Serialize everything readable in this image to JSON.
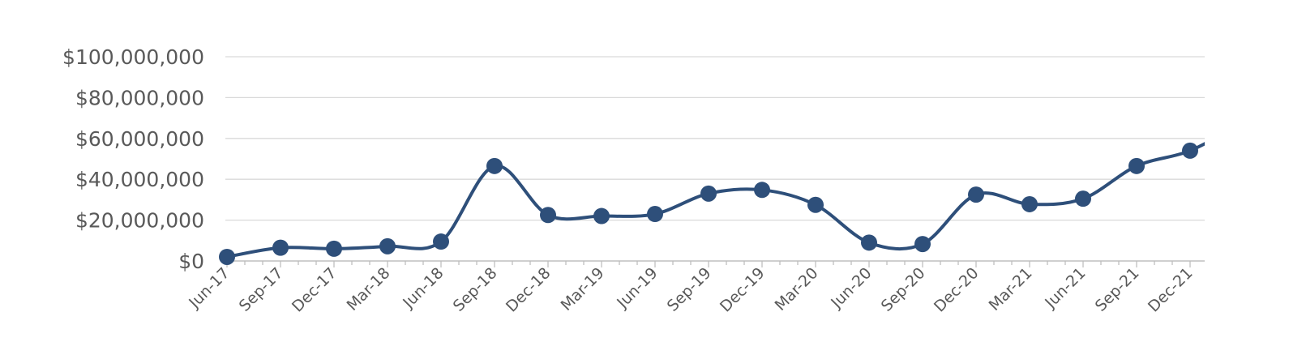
{
  "chart_data": {
    "type": "line",
    "categories": [
      "Jun-17",
      "Sep-17",
      "Dec-17",
      "Mar-18",
      "Jun-18",
      "Sep-18",
      "Dec-18",
      "Mar-19",
      "Jun-19",
      "Sep-19",
      "Dec-19",
      "Mar-20",
      "Jun-20",
      "Sep-20",
      "Dec-20",
      "Mar-21",
      "Jun-21",
      "Sep-21",
      "Dec-21"
    ],
    "series": [
      {
        "values": [
          2000000,
          6500000,
          6000000,
          7200000,
          9500000,
          46500000,
          22500000,
          22000000,
          23000000,
          33000000,
          34800000,
          27500000,
          9000000,
          8300000,
          32500000,
          27800000,
          30500000,
          46500000,
          54000000
        ],
        "color": "#2e4f7a"
      }
    ],
    "trailing_value": 68000000,
    "y_tick_labels": [
      "$0",
      "$20,000,000",
      "$40,000,000",
      "$60,000,000",
      "$80,000,000",
      "$100,000,000"
    ],
    "ylim": [
      0,
      100000000
    ],
    "y_step": 20000000,
    "grid": true,
    "title": "",
    "xlabel": "",
    "ylabel": ""
  }
}
